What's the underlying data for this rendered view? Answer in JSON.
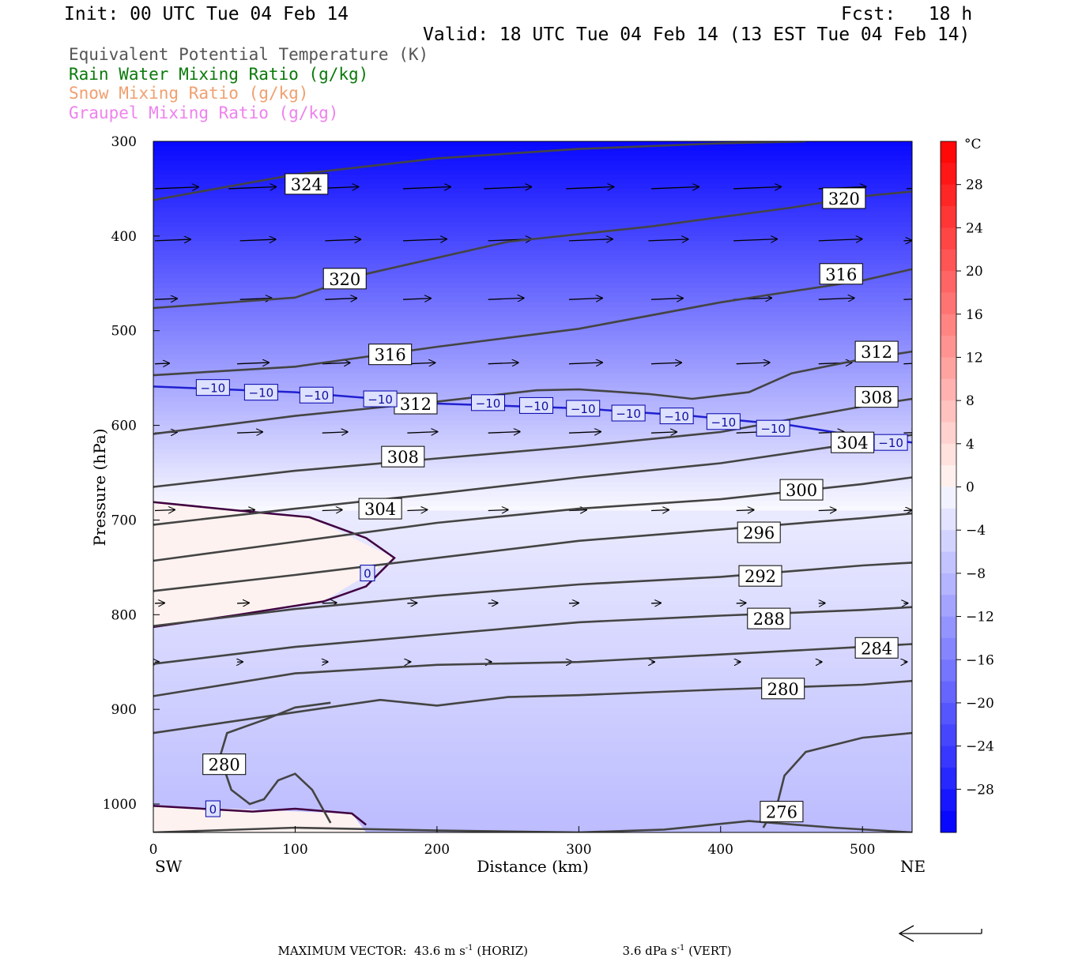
{
  "header": {
    "init": "Init: 00 UTC Tue 04 Feb 14",
    "fcst": "Fcst:   18 h",
    "valid": "Valid: 18 UTC Tue 04 Feb 14 (13 EST Tue 04 Feb 14)"
  },
  "legend": [
    {
      "label": "Equivalent Potential Temperature (K)",
      "color": "#555555"
    },
    {
      "label": "Rain Water Mixing Ratio (g/kg)",
      "color": "#0a7a0a"
    },
    {
      "label": "Snow Mixing Ratio (g/kg)",
      "color": "#f0a070"
    },
    {
      "label": "Graupel Mixing Ratio (g/kg)",
      "color": "#ee82ee"
    }
  ],
  "footer": {
    "max_vector_label": "MAXIMUM VECTOR:",
    "horiz_value": "43.6 m s",
    "horiz_exp": "-1",
    "horiz_unit": " (HORIZ)",
    "vert_value": "3.6 dPa s",
    "vert_exp": "-1",
    "vert_unit": " (VERT)"
  },
  "chart_data": {
    "type": "cross-section",
    "xlabel": "Distance (km)",
    "ylabel": "Pressure (hPa)",
    "x_range": [
      0,
      535
    ],
    "y_range": [
      300,
      1030
    ],
    "y_log": false,
    "x_ticks": [
      0,
      100,
      200,
      300,
      400,
      500
    ],
    "y_ticks": [
      300,
      400,
      500,
      600,
      700,
      800,
      900,
      1000
    ],
    "x_end_labels": {
      "left": "SW",
      "right": "NE"
    },
    "colorbar": {
      "unit": "°C",
      "tick_labels": [
        "28",
        "24",
        "20",
        "16",
        "12",
        "8",
        "4",
        "0",
        "−4",
        "−8",
        "−12",
        "−16",
        "−20",
        "−24",
        "−28"
      ],
      "tick_values": [
        28,
        24,
        20,
        16,
        12,
        8,
        4,
        0,
        -4,
        -8,
        -12,
        -16,
        -20,
        -24,
        -28
      ],
      "range": [
        -32,
        32
      ],
      "step": 2
    },
    "theta_e_contours": [
      {
        "label": "324",
        "points": [
          [
            0,
            362
          ],
          [
            100,
            335
          ],
          [
            200,
            318
          ],
          [
            300,
            308
          ],
          [
            400,
            302
          ],
          [
            460,
            300
          ]
        ]
      },
      {
        "label": "320",
        "points": [
          [
            0,
            476
          ],
          [
            100,
            465
          ],
          [
            150,
            440
          ],
          [
            250,
            406
          ],
          [
            350,
            390
          ],
          [
            450,
            370
          ],
          [
            500,
            358
          ],
          [
            535,
            353
          ]
        ]
      },
      {
        "label": "316",
        "points": [
          [
            0,
            547
          ],
          [
            100,
            538
          ],
          [
            200,
            517
          ],
          [
            300,
            498
          ],
          [
            400,
            470
          ],
          [
            500,
            447
          ],
          [
            535,
            435
          ]
        ]
      },
      {
        "label": "312",
        "points": [
          [
            0,
            609
          ],
          [
            100,
            590
          ],
          [
            200,
            575
          ],
          [
            270,
            563
          ],
          [
            300,
            562
          ],
          [
            350,
            567
          ],
          [
            380,
            572
          ],
          [
            420,
            565
          ],
          [
            450,
            545
          ],
          [
            500,
            530
          ],
          [
            535,
            522
          ]
        ]
      },
      {
        "label": "308",
        "points": [
          [
            0,
            665
          ],
          [
            100,
            648
          ],
          [
            200,
            635
          ],
          [
            300,
            622
          ],
          [
            400,
            607
          ],
          [
            500,
            580
          ],
          [
            535,
            572
          ]
        ]
      },
      {
        "label": "304",
        "points": [
          [
            0,
            705
          ],
          [
            100,
            688
          ],
          [
            200,
            672
          ],
          [
            300,
            655
          ],
          [
            400,
            640
          ],
          [
            500,
            618
          ],
          [
            535,
            610
          ]
        ]
      },
      {
        "label": "300",
        "points": [
          [
            0,
            743
          ],
          [
            100,
            723
          ],
          [
            200,
            703
          ],
          [
            300,
            688
          ],
          [
            400,
            678
          ],
          [
            500,
            662
          ],
          [
            535,
            655
          ]
        ]
      },
      {
        "label": "296",
        "points": [
          [
            0,
            775
          ],
          [
            100,
            758
          ],
          [
            200,
            740
          ],
          [
            300,
            722
          ],
          [
            400,
            710
          ],
          [
            500,
            698
          ],
          [
            535,
            693
          ]
        ]
      },
      {
        "label": "292",
        "points": [
          [
            0,
            812
          ],
          [
            100,
            794
          ],
          [
            200,
            780
          ],
          [
            300,
            768
          ],
          [
            400,
            760
          ],
          [
            500,
            748
          ],
          [
            535,
            745
          ]
        ]
      },
      {
        "label": "288",
        "points": [
          [
            0,
            852
          ],
          [
            100,
            834
          ],
          [
            200,
            821
          ],
          [
            300,
            808
          ],
          [
            400,
            801
          ],
          [
            500,
            795
          ],
          [
            535,
            792
          ]
        ]
      },
      {
        "label": "284",
        "points": [
          [
            0,
            886
          ],
          [
            100,
            862
          ],
          [
            200,
            853
          ],
          [
            300,
            850
          ],
          [
            400,
            842
          ],
          [
            500,
            834
          ],
          [
            535,
            831
          ]
        ]
      },
      {
        "label": "280",
        "points": [
          [
            0,
            925
          ],
          [
            100,
            903
          ],
          [
            160,
            890
          ],
          [
            200,
            896
          ],
          [
            250,
            887
          ],
          [
            300,
            885
          ],
          [
            400,
            879
          ],
          [
            500,
            874
          ],
          [
            535,
            870
          ]
        ]
      },
      {
        "label": "280",
        "points": [
          [
            47,
            950
          ],
          [
            52,
            925
          ],
          [
            80,
            910
          ],
          [
            100,
            898
          ],
          [
            125,
            893
          ]
        ]
      },
      {
        "label": "280",
        "points": [
          [
            47,
            950
          ],
          [
            55,
            985
          ],
          [
            68,
            1000
          ],
          [
            78,
            995
          ],
          [
            88,
            975
          ],
          [
            100,
            968
          ],
          [
            112,
            985
          ],
          [
            125,
            1020
          ]
        ]
      },
      {
        "label": "276",
        "points": [
          [
            430,
            1025
          ],
          [
            440,
            1000
          ],
          [
            445,
            970
          ],
          [
            460,
            945
          ],
          [
            500,
            930
          ],
          [
            535,
            925
          ]
        ]
      },
      {
        "label": "",
        "points": [
          [
            0,
            1030
          ],
          [
            100,
            1025
          ],
          [
            200,
            1028
          ],
          [
            300,
            1030
          ],
          [
            360,
            1027
          ],
          [
            420,
            1018
          ],
          [
            480,
            1025
          ],
          [
            535,
            1030
          ]
        ]
      }
    ],
    "temperature_contours": [
      {
        "label": "0",
        "points": [
          [
            0,
            681
          ],
          [
            60,
            690
          ],
          [
            110,
            697
          ],
          [
            150,
            719
          ],
          [
            170,
            740
          ],
          [
            150,
            770
          ],
          [
            120,
            786
          ],
          [
            60,
            800
          ],
          [
            0,
            813
          ]
        ],
        "color": "#400040"
      },
      {
        "label": "0",
        "points": [
          [
            0,
            1002
          ],
          [
            70,
            1008
          ],
          [
            100,
            1005
          ],
          [
            140,
            1010
          ],
          [
            150,
            1022
          ]
        ],
        "color": "#400040"
      },
      {
        "label": "−10",
        "points": [
          [
            0,
            559
          ],
          [
            100,
            565
          ],
          [
            200,
            577
          ],
          [
            300,
            582
          ],
          [
            380,
            590
          ],
          [
            450,
            600
          ],
          [
            500,
            612
          ],
          [
            535,
            618
          ]
        ],
        "color": "#2020d0"
      }
    ],
    "contour_labels_box": [
      {
        "text": "324",
        "x": 108,
        "p": 345
      },
      {
        "text": "320",
        "x": 135,
        "p": 445
      },
      {
        "text": "320",
        "x": 487,
        "p": 360
      },
      {
        "text": "316",
        "x": 167,
        "p": 525
      },
      {
        "text": "316",
        "x": 485,
        "p": 440
      },
      {
        "text": "312",
        "x": 185,
        "p": 577
      },
      {
        "text": "312",
        "x": 510,
        "p": 522
      },
      {
        "text": "308",
        "x": 176,
        "p": 633
      },
      {
        "text": "308",
        "x": 510,
        "p": 570
      },
      {
        "text": "304",
        "x": 160,
        "p": 688
      },
      {
        "text": "304",
        "x": 493,
        "p": 618
      },
      {
        "text": "300",
        "x": 457,
        "p": 668
      },
      {
        "text": "296",
        "x": 427,
        "p": 713
      },
      {
        "text": "292",
        "x": 428,
        "p": 759
      },
      {
        "text": "288",
        "x": 434,
        "p": 804
      },
      {
        "text": "284",
        "x": 510,
        "p": 835
      },
      {
        "text": "280",
        "x": 444,
        "p": 878
      },
      {
        "text": "280",
        "x": 50,
        "p": 958
      },
      {
        "text": "276",
        "x": 443,
        "p": 1008
      }
    ],
    "temp_labels": [
      {
        "text": "0",
        "x": 151,
        "p": 756
      },
      {
        "text": "0",
        "x": 42,
        "p": 1005
      },
      {
        "text": "−10",
        "x": 42,
        "p": 560
      },
      {
        "text": "−10",
        "x": 76,
        "p": 565
      },
      {
        "text": "−10",
        "x": 115,
        "p": 568
      },
      {
        "text": "−10",
        "x": 160,
        "p": 572
      },
      {
        "text": "−10",
        "x": 236,
        "p": 576
      },
      {
        "text": "−10",
        "x": 270,
        "p": 579
      },
      {
        "text": "−10",
        "x": 303,
        "p": 582
      },
      {
        "text": "−10",
        "x": 335,
        "p": 587
      },
      {
        "text": "−10",
        "x": 369,
        "p": 590
      },
      {
        "text": "−10",
        "x": 402,
        "p": 596
      },
      {
        "text": "−10",
        "x": 437,
        "p": 603
      },
      {
        "text": "−10",
        "x": 520,
        "p": 618
      }
    ],
    "wind_vector_rows": [
      {
        "p": 350,
        "x": [
          0,
          52,
          110,
          175,
          232,
          290,
          350,
          408,
          468,
          530
        ],
        "len": [
          55,
          60,
          60,
          60,
          60,
          60,
          60,
          60,
          60,
          20
        ]
      },
      {
        "p": 405,
        "x": [
          0,
          60,
          120,
          175,
          235,
          292,
          348,
          408,
          468,
          528
        ],
        "len": [
          45,
          45,
          45,
          55,
          55,
          55,
          50,
          55,
          55,
          10
        ]
      },
      {
        "p": 467,
        "x": [
          0,
          60,
          120,
          175,
          235,
          292,
          350,
          408,
          468,
          528
        ],
        "len": [
          28,
          40,
          40,
          35,
          45,
          42,
          40,
          48,
          45,
          18
        ]
      },
      {
        "p": 535,
        "x": [
          0,
          58,
          118,
          178,
          235,
          292,
          350,
          410,
          468,
          528
        ],
        "len": [
          18,
          40,
          35,
          35,
          38,
          42,
          38,
          42,
          42,
          20
        ]
      },
      {
        "p": 608,
        "x": [
          0,
          58,
          118,
          178,
          235,
          292,
          350,
          410,
          468,
          528
        ],
        "len": [
          28,
          32,
          32,
          38,
          40,
          40,
          32,
          38,
          32,
          18
        ]
      },
      {
        "p": 690,
        "x": [
          0,
          58,
          118,
          178,
          235,
          292,
          350,
          410,
          468,
          528
        ],
        "len": [
          25,
          22,
          25,
          25,
          25,
          22,
          22,
          22,
          22,
          10
        ]
      },
      {
        "p": 788,
        "x": [
          0,
          58,
          118,
          178,
          235,
          292,
          350,
          410,
          468,
          528
        ],
        "len": [
          12,
          15,
          18,
          12,
          12,
          12,
          12,
          12,
          8,
          5
        ]
      },
      {
        "p": 850,
        "x": [
          0,
          58,
          118,
          178,
          235,
          292,
          350,
          410,
          468,
          528
        ],
        "len": [
          5,
          7,
          7,
          4,
          4,
          4,
          4,
          5,
          4,
          4
        ]
      }
    ]
  }
}
